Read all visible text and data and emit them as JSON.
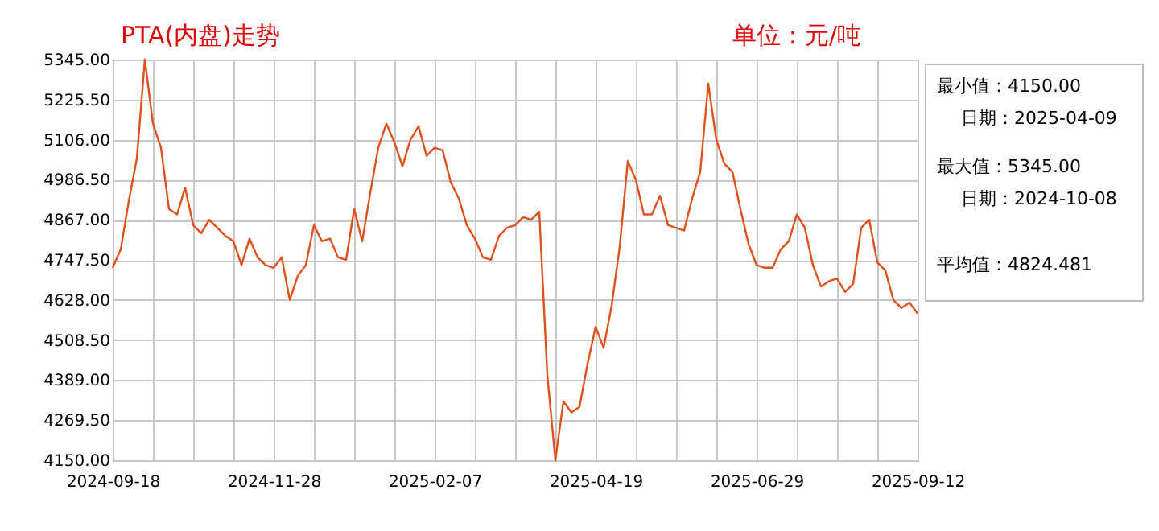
{
  "chart_data": {
    "type": "line",
    "title": "PTA(内盘)走势",
    "annotations": [
      "单位：元/吨",
      "最小值：4150.00",
      "日期：2025-04-09",
      "最大值：5345.00",
      "日期：2024-10-08",
      "平均值：4824.481"
    ],
    "categories": [
      "2024-09-18",
      null,
      null,
      null,
      null,
      null,
      null,
      null,
      null,
      null,
      null,
      null,
      null,
      null,
      null,
      null,
      null,
      null,
      null,
      null,
      "2024-11-28",
      null,
      null,
      null,
      null,
      null,
      null,
      null,
      null,
      null,
      null,
      null,
      null,
      null,
      null,
      null,
      null,
      null,
      null,
      null,
      "2025-02-07",
      null,
      null,
      null,
      null,
      null,
      null,
      null,
      null,
      null,
      null,
      null,
      null,
      null,
      null,
      null,
      null,
      null,
      null,
      null,
      "2025-04-19",
      null,
      null,
      null,
      null,
      null,
      null,
      null,
      null,
      null,
      null,
      null,
      null,
      null,
      null,
      null,
      null,
      null,
      null,
      null,
      "2025-06-29",
      null,
      null,
      null,
      null,
      null,
      null,
      null,
      null,
      null,
      null,
      null,
      null,
      null,
      null,
      null,
      null,
      null,
      null,
      null,
      "2025-09-12"
    ],
    "series": [
      {
        "color": "#e0501a",
        "values": [
          4724,
          4779,
          4923,
          5050,
          5345,
          5154,
          5082,
          4899,
          4883,
          4963,
          4851,
          4827,
          4867,
          4843,
          4819,
          4803,
          4732,
          4811,
          4755,
          4732,
          4724,
          4755,
          4628,
          4700,
          4732,
          4851,
          4803,
          4811,
          4755,
          4748,
          4899,
          4803,
          4947,
          5082,
          5154,
          5098,
          5026,
          5106,
          5146,
          5058,
          5082,
          5074,
          4979,
          4931,
          4851,
          4811,
          4755,
          4748,
          4819,
          4843,
          4851,
          4875,
          4867,
          4891,
          4405,
          4150,
          4325,
          4293,
          4309,
          4437,
          4548,
          4485,
          4612,
          4787,
          5042,
          4986,
          4883,
          4883,
          4939,
          4851,
          4843,
          4835,
          4931,
          5010,
          5273,
          5106,
          5034,
          5010,
          4899,
          4795,
          4732,
          4724,
          4724,
          4779,
          4803,
          4883,
          4843,
          4732,
          4668,
          4684,
          4692,
          4652,
          4676,
          4843,
          4867,
          4740,
          4716,
          4628,
          4604,
          4620,
          4588
        ]
      }
    ],
    "ylim": [
      4150,
      5345
    ],
    "yticks": [
      {
        "value": 4150,
        "label": "4150.00"
      },
      {
        "value": 4269.5,
        "label": "4269.50"
      },
      {
        "value": 4389,
        "label": "4389.00"
      },
      {
        "value": 4508.5,
        "label": "4508.50"
      },
      {
        "value": 4628,
        "label": "4628.00"
      },
      {
        "value": 4747.5,
        "label": "4747.50"
      },
      {
        "value": 4867,
        "label": "4867.00"
      },
      {
        "value": 4986.5,
        "label": "4986.50"
      },
      {
        "value": 5106,
        "label": "5106.00"
      },
      {
        "value": 5225.5,
        "label": "5225.50"
      },
      {
        "value": 5345,
        "label": "5345.00"
      }
    ],
    "grid": true
  }
}
